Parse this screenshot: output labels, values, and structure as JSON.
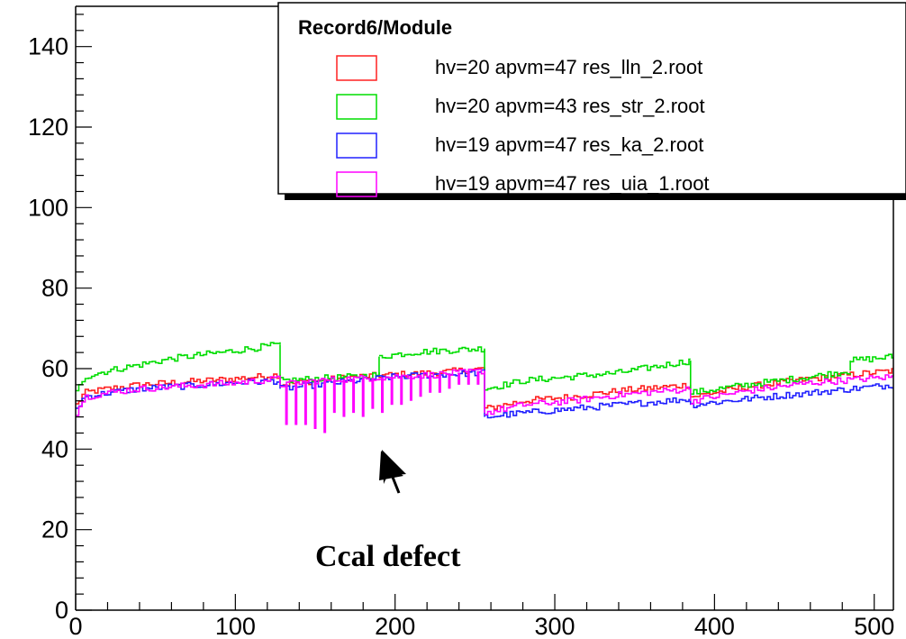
{
  "chart_data": {
    "type": "line",
    "legend_title": "Record6/Module",
    "legend_position": "top-right",
    "xlim": [
      0,
      512
    ],
    "ylim": [
      0,
      150
    ],
    "x_ticks": [
      0,
      100,
      200,
      300,
      400,
      500
    ],
    "y_ticks": [
      0,
      20,
      40,
      60,
      80,
      100,
      120,
      140
    ],
    "grid": false,
    "annotation": {
      "text": "Ccal defect",
      "arrow_target": [
        195,
        43
      ]
    },
    "series": [
      {
        "name": "hv=20 apvm=47 res_lln_2.root",
        "color": "#ff2020",
        "segments": [
          {
            "x": [
              0,
              5,
              20,
              40,
              60,
              80,
              100,
              128
            ],
            "y": [
              51,
              54,
              55,
              56,
              56.5,
              57,
              57.5,
              58.5
            ]
          },
          {
            "x": [
              128,
              150,
              175,
              200,
              225,
              256
            ],
            "y": [
              56,
              57,
              58,
              58.5,
              59,
              60
            ]
          },
          {
            "x": [
              256,
              280,
              310,
              340,
              385
            ],
            "y": [
              50,
              52,
              53,
              54.5,
              56
            ]
          },
          {
            "x": [
              385,
              420,
              460,
              512
            ],
            "y": [
              53,
              55.5,
              57.5,
              59.5
            ]
          }
        ]
      },
      {
        "name": "hv=20 apvm=43 res_str_2.root",
        "color": "#00dd00",
        "segments": [
          {
            "x": [
              0,
              5,
              20,
              40,
              60,
              80,
              100,
              128
            ],
            "y": [
              54,
              58,
              59.5,
              61,
              62.5,
              63.5,
              64.5,
              66
            ]
          },
          {
            "x": [
              128,
              150,
              175,
              190
            ],
            "y": [
              57,
              57.5,
              58,
              58.5
            ]
          },
          {
            "x": [
              190,
              210,
              230,
              256
            ],
            "y": [
              63,
              64,
              64.5,
              65
            ]
          },
          {
            "x": [
              256,
              280,
              310,
              340,
              385
            ],
            "y": [
              55,
              57,
              58,
              59,
              62
            ]
          },
          {
            "x": [
              385,
              420,
              460,
              485
            ],
            "y": [
              54,
              56,
              58,
              59.5
            ]
          },
          {
            "x": [
              485,
              500,
              512
            ],
            "y": [
              62,
              62.5,
              63
            ]
          }
        ]
      },
      {
        "name": "hv=19 apvm=47 res_ka_2.root",
        "color": "#2020ff",
        "segments": [
          {
            "x": [
              0,
              5,
              20,
              40,
              60,
              80,
              100,
              128
            ],
            "y": [
              50,
              53,
              54,
              55,
              55.5,
              56,
              56.5,
              57
            ]
          },
          {
            "x": [
              128,
              150,
              175,
              200,
              225,
              256
            ],
            "y": [
              55,
              56,
              57,
              58,
              58.5,
              59
            ]
          },
          {
            "x": [
              256,
              280,
              310,
              340,
              385
            ],
            "y": [
              48,
              49,
              50,
              51,
              52.5
            ]
          },
          {
            "x": [
              385,
              420,
              460,
              512
            ],
            "y": [
              51,
              52.5,
              54,
              56
            ]
          }
        ]
      },
      {
        "name": "hv=19 apvm=47 res_uia_1.root",
        "color": "#ff00ff",
        "segments": [
          {
            "x": [
              0,
              5,
              20,
              40,
              60,
              80,
              100,
              128
            ],
            "y": [
              49,
              53,
              54,
              55,
              55.5,
              56,
              56.5,
              57.5
            ]
          },
          {
            "x": [
              128,
              150,
              175,
              200,
              225,
              256
            ],
            "y": [
              56,
              57,
              57.5,
              58,
              58.5,
              59.5
            ]
          },
          {
            "x": [
              256,
              280,
              310,
              340,
              385
            ],
            "y": [
              49,
              51,
              52,
              53.5,
              55
            ]
          },
          {
            "x": [
              385,
              420,
              460,
              512
            ],
            "y": [
              52,
              54.5,
              56.5,
              58
            ]
          }
        ],
        "dips": {
          "x": [
            132,
            138,
            144,
            150,
            156,
            162,
            168,
            174,
            180,
            186,
            192,
            198,
            204,
            210,
            216,
            222,
            228,
            234,
            240,
            246,
            252
          ],
          "y": [
            46,
            46,
            46,
            45,
            44,
            49,
            48,
            49,
            48,
            50,
            49,
            51,
            51,
            52,
            53,
            54,
            54,
            55,
            56,
            56,
            56
          ]
        }
      }
    ]
  }
}
